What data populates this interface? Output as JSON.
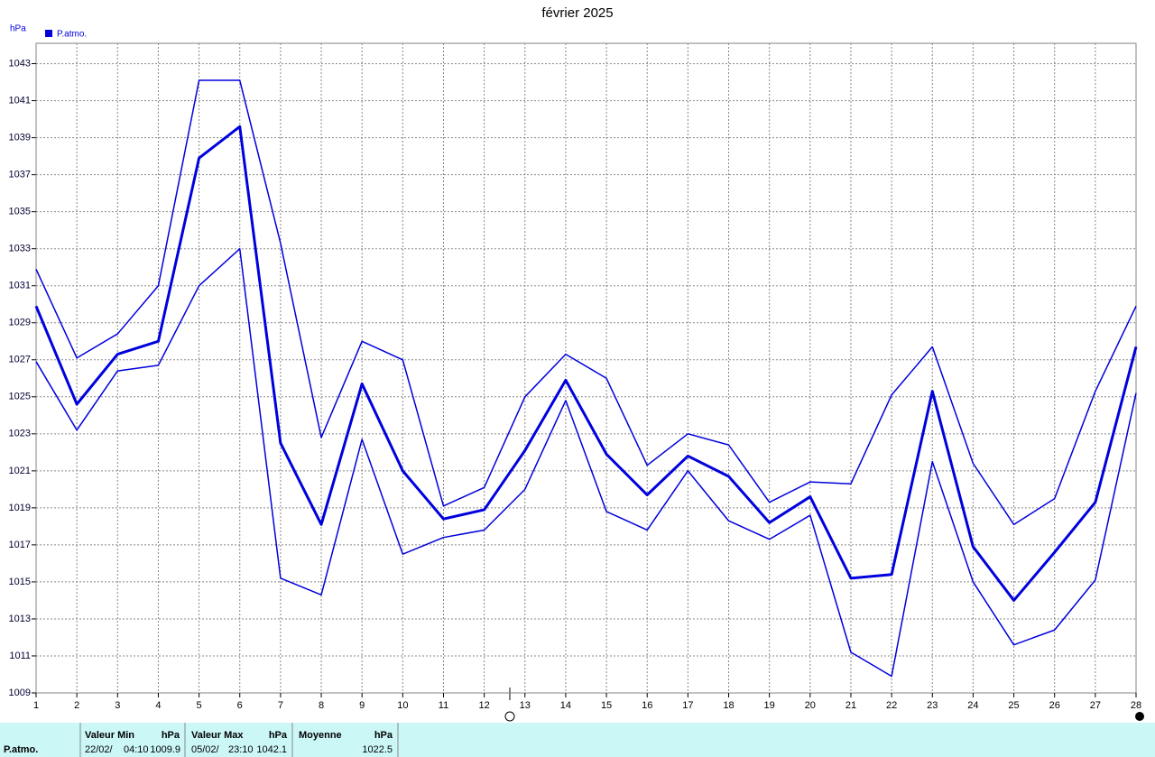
{
  "chart_data": {
    "type": "line",
    "title": "février 2025",
    "y_label": "hPa",
    "legend": {
      "name": "P.atmo.",
      "color": "#0000dd"
    },
    "x": [
      1,
      2,
      3,
      4,
      5,
      6,
      7,
      8,
      9,
      10,
      11,
      12,
      13,
      14,
      15,
      16,
      17,
      18,
      19,
      20,
      21,
      22,
      23,
      24,
      25,
      26,
      27,
      28
    ],
    "xlim": [
      1,
      28
    ],
    "xticks": [
      1,
      2,
      3,
      4,
      5,
      6,
      7,
      8,
      9,
      10,
      11,
      12,
      13,
      14,
      15,
      16,
      17,
      18,
      19,
      20,
      21,
      22,
      23,
      24,
      25,
      26,
      27,
      28
    ],
    "ylim": [
      1009,
      1044.1
    ],
    "yticks": [
      1009,
      1011,
      1013,
      1015,
      1017,
      1019,
      1021,
      1023,
      1025,
      1027,
      1029,
      1031,
      1033,
      1035,
      1037,
      1039,
      1041,
      1043
    ],
    "grid": true,
    "series": [
      {
        "color": "#0000dd",
        "width": 1.5,
        "values": [
          1031.9,
          1027.1,
          1028.4,
          1031.0,
          1042.1,
          1042.1,
          1033.3,
          1022.8,
          1028.0,
          1027.0,
          1019.1,
          1020.1,
          1025.0,
          1027.3,
          1026.0,
          1021.3,
          1023.0,
          1022.4,
          1019.3,
          1020.4,
          1020.3,
          1025.1,
          1027.7,
          1021.4,
          1018.1,
          1019.5,
          1025.3,
          1029.9
        ]
      },
      {
        "color": "#0000dd",
        "width": 3,
        "values": [
          1029.9,
          1024.6,
          1027.3,
          1028.0,
          1037.9,
          1039.6,
          1022.5,
          1018.1,
          1025.7,
          1021.0,
          1018.4,
          1018.9,
          1022.1,
          1025.9,
          1021.9,
          1019.7,
          1021.8,
          1020.7,
          1018.2,
          1019.6,
          1015.2,
          1015.4,
          1025.3,
          1016.9,
          1014.0,
          1016.6,
          1019.3,
          1027.7
        ]
      },
      {
        "color": "#0000dd",
        "width": 1.5,
        "values": [
          1026.9,
          1023.2,
          1026.4,
          1026.7,
          1031.0,
          1033.0,
          1015.2,
          1014.3,
          1022.7,
          1016.5,
          1017.4,
          1017.8,
          1020.0,
          1024.8,
          1018.8,
          1017.8,
          1021.0,
          1018.3,
          1017.3,
          1018.6,
          1011.2,
          1009.9,
          1021.5,
          1015.0,
          1011.6,
          1012.4,
          1015.1,
          1025.2
        ]
      }
    ]
  },
  "summary": {
    "row_label": "P.atmo.",
    "min": {
      "header": "Valeur Min",
      "unit": "hPa",
      "date": "22/02/",
      "time": "04:10",
      "value": 1009.9
    },
    "max": {
      "header": "Valeur Max",
      "unit": "hPa",
      "date": "05/02/",
      "time": "23:10",
      "value": 1042.1
    },
    "mean": {
      "header": "Moyenne",
      "unit": "hPa",
      "value": 1022.5
    }
  }
}
